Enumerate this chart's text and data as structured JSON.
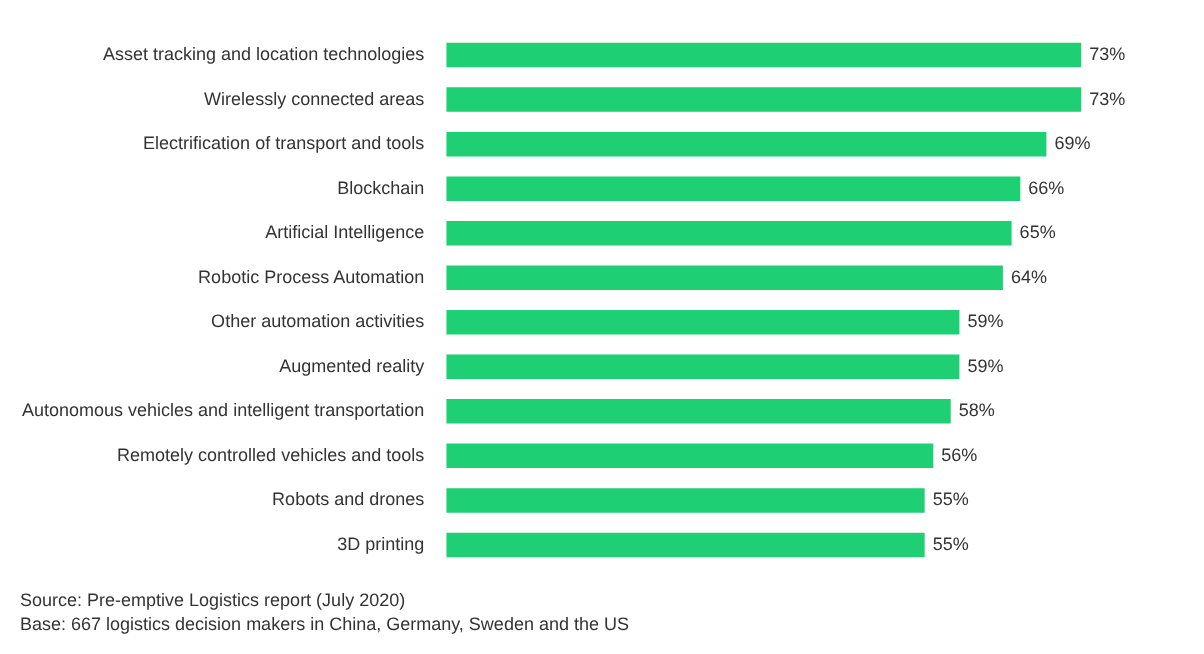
{
  "chart_data": {
    "type": "bar",
    "orientation": "horizontal",
    "categories": [
      "Asset tracking and location technologies",
      "Wirelessly connected areas",
      "Electrification of transport and tools",
      "Blockchain",
      "Artificial Intelligence",
      "Robotic Process Automation",
      "Other automation activities",
      "Augmented reality",
      "Autonomous vehicles and intelligent transportation",
      "Remotely controlled vehicles and tools",
      "Robots and drones",
      "3D printing"
    ],
    "values": [
      73,
      73,
      69,
      66,
      65,
      64,
      59,
      59,
      58,
      56,
      55,
      55
    ],
    "value_labels": [
      "73%",
      "73%",
      "69%",
      "66%",
      "65%",
      "64%",
      "59%",
      "59%",
      "58%",
      "56%",
      "55%",
      "55%"
    ],
    "color": "#1fcf74",
    "legend": false,
    "tick_labels": "y",
    "annotations": [
      "Source: Pre-emptive Logistics report (July 2020)",
      "Base: 667 logistics decision makers in China, Germany, Sweden and the US"
    ]
  }
}
